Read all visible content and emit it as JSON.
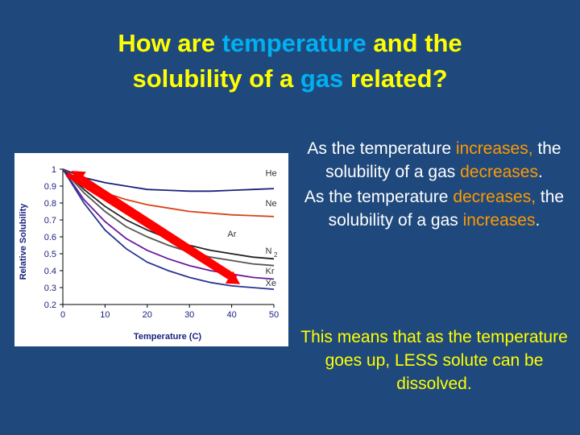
{
  "title": {
    "part1": "How are ",
    "temperature": "temperature",
    "part2": " and the",
    "part3": "solubility of a ",
    "gas": "gas",
    "part4": " related?"
  },
  "statement1": {
    "pre": "As the temperature",
    "emph": "increases,",
    "mid": " the solubility of a gas ",
    "emph2": "decreases",
    "end": "."
  },
  "statement2": {
    "pre": "As the temperature",
    "emph": "decreases,",
    "mid": " the solubility of a gas ",
    "emph2": "increases",
    "end": "."
  },
  "summary": "This means that as the temperature goes up, LESS solute can be dissolved.",
  "colors": {
    "background": "#1f497d",
    "title": "#ffff00",
    "highlight_blue": "#00b0f0",
    "highlight_orange": "#ff9900",
    "arrow": "#ff0000"
  },
  "chart_data": {
    "type": "line",
    "xlabel": "Temperature (C)",
    "ylabel": "Relative Solubility",
    "xlim": [
      0,
      50
    ],
    "ylim": [
      0.2,
      1
    ],
    "x_ticks": [
      "0",
      "10",
      "20",
      "30",
      "40",
      "50"
    ],
    "y_ticks": [
      "0.2",
      "0.3",
      "0.4",
      "0.5",
      "0.6",
      "0.7",
      "0.8",
      "0.9",
      "1"
    ],
    "x": [
      0,
      5,
      10,
      15,
      20,
      25,
      30,
      35,
      40,
      45,
      50
    ],
    "series": [
      {
        "name": "He",
        "color": "#1a237e",
        "values": [
          1.0,
          0.95,
          0.92,
          0.9,
          0.88,
          0.875,
          0.87,
          0.87,
          0.875,
          0.88,
          0.885
        ]
      },
      {
        "name": "Ne",
        "color": "#d84315",
        "values": [
          1.0,
          0.92,
          0.86,
          0.82,
          0.79,
          0.77,
          0.75,
          0.74,
          0.73,
          0.725,
          0.72
        ]
      },
      {
        "name": "Ar",
        "color": "#555555",
        "values": [
          1.0,
          0.86,
          0.75,
          0.66,
          0.6,
          0.55,
          0.51,
          0.48,
          0.46,
          0.44,
          0.43
        ]
      },
      {
        "name": "N2",
        "color": "#222222",
        "values": [
          1.0,
          0.88,
          0.78,
          0.7,
          0.64,
          0.59,
          0.55,
          0.52,
          0.5,
          0.48,
          0.47
        ]
      },
      {
        "name": "Kr",
        "color": "#6a1b9a",
        "values": [
          1.0,
          0.82,
          0.69,
          0.59,
          0.52,
          0.47,
          0.43,
          0.4,
          0.38,
          0.36,
          0.35
        ]
      },
      {
        "name": "Xe",
        "color": "#283593",
        "values": [
          1.0,
          0.8,
          0.64,
          0.53,
          0.45,
          0.4,
          0.36,
          0.33,
          0.31,
          0.3,
          0.29
        ]
      }
    ],
    "annotations": [
      {
        "text": "He",
        "x": 48,
        "y": 0.96
      },
      {
        "text": "Ne",
        "x": 48,
        "y": 0.78
      },
      {
        "text": "Ar",
        "x": 39,
        "y": 0.6
      },
      {
        "text": "N",
        "x": 48,
        "y": 0.5
      },
      {
        "text": "2",
        "x": 50,
        "y": 0.48
      },
      {
        "text": "Kr",
        "x": 48,
        "y": 0.38
      },
      {
        "text": "Xe",
        "x": 48,
        "y": 0.31
      }
    ],
    "arrows": [
      {
        "from": [
          1,
          0.97
        ],
        "to": [
          42,
          0.32
        ]
      },
      {
        "from": [
          41,
          0.36
        ],
        "to": [
          2,
          0.99
        ]
      }
    ]
  }
}
